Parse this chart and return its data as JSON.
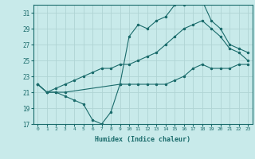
{
  "xlabel": "Humidex (Indice chaleur)",
  "bg_color": "#c8eaea",
  "grid_color": "#b0d4d4",
  "line_color": "#1a6b6b",
  "xlim": [
    -0.5,
    23.5
  ],
  "ylim": [
    17,
    32
  ],
  "xticks": [
    0,
    1,
    2,
    3,
    4,
    5,
    6,
    7,
    8,
    9,
    10,
    11,
    12,
    13,
    14,
    15,
    16,
    17,
    18,
    19,
    20,
    21,
    22,
    23
  ],
  "yticks": [
    17,
    19,
    21,
    23,
    25,
    27,
    29,
    31
  ],
  "line1_x": [
    0,
    1,
    2,
    3,
    4,
    5,
    6,
    7,
    8,
    9,
    10,
    11,
    12,
    13,
    14,
    15,
    16,
    17,
    18,
    19,
    20,
    21,
    22,
    23
  ],
  "line1_y": [
    22,
    21,
    21,
    20.5,
    20,
    19.5,
    17.5,
    17,
    18.5,
    22,
    22,
    22,
    22,
    22,
    22,
    22.5,
    23,
    24,
    24.5,
    24,
    24,
    24,
    24.5,
    24.5
  ],
  "line2_x": [
    0,
    1,
    2,
    3,
    4,
    5,
    6,
    7,
    8,
    9,
    10,
    11,
    12,
    13,
    14,
    15,
    16,
    17,
    18,
    19,
    20,
    21,
    22,
    23
  ],
  "line2_y": [
    22,
    21,
    21.5,
    22,
    22.5,
    23,
    23.5,
    24,
    24,
    24.5,
    24.5,
    25,
    25.5,
    26,
    27,
    28,
    29,
    29.5,
    30,
    29,
    28,
    26.5,
    26,
    25
  ],
  "line3_x": [
    0,
    1,
    2,
    3,
    9,
    10,
    11,
    12,
    13,
    14,
    15,
    16,
    17,
    18,
    19,
    20,
    21,
    22,
    23
  ],
  "line3_y": [
    22,
    21,
    21,
    21,
    22,
    28,
    29.5,
    29,
    30,
    30.5,
    32,
    32,
    32.5,
    32.5,
    30,
    29,
    27,
    26.5,
    26
  ]
}
